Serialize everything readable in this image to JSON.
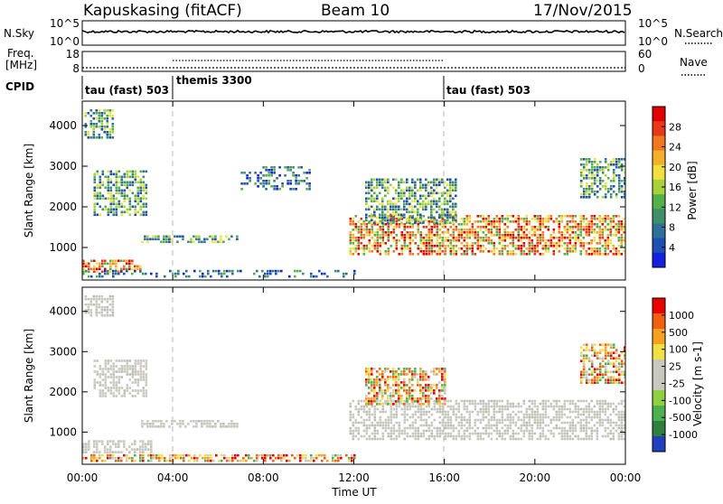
{
  "header": {
    "title": "Kapuskasing (fitACF)",
    "beam": "Beam 10",
    "date": "17/Nov/2015"
  },
  "sky_panel": {
    "label": "N.Sky",
    "right_label": "N.Search",
    "left_top": "10^5",
    "left_bottom": "10^0",
    "right_top": "10^5",
    "right_bottom": "10^0"
  },
  "freq_panel": {
    "label_line1": "Freq.",
    "label_line2": "[MHz]",
    "right_label": "Nave",
    "left_top": "18",
    "left_bottom": "8",
    "right_top": "60",
    "right_bottom": "0"
  },
  "cpid": {
    "label": "CPID",
    "segments": [
      {
        "name": "tau (fast) 503",
        "start_hour": 0,
        "end_hour": 4
      },
      {
        "name": "themis 3300",
        "start_hour": 4,
        "end_hour": 16
      },
      {
        "name": "tau (fast) 503",
        "start_hour": 16,
        "end_hour": 24
      }
    ]
  },
  "chart_data": [
    {
      "type": "heatmap",
      "name": "power",
      "ylabel": "Slant Range [km]",
      "xlabel": "Time UT",
      "xlim": [
        0,
        24
      ],
      "ylim": [
        200,
        4600
      ],
      "x_ticks": [
        "00:00",
        "04:00",
        "08:00",
        "12:00",
        "16:00",
        "20:00",
        "00:00"
      ],
      "y_ticks": [
        "1000",
        "2000",
        "3000",
        "4000"
      ],
      "colorbar": {
        "label": "Power [dB]",
        "ticks": [
          "4",
          "8",
          "12",
          "16",
          "20",
          "24",
          "28"
        ],
        "colors": [
          "#1420e0",
          "#1f4fb0",
          "#2f6f9a",
          "#3f8f6a",
          "#55b04a",
          "#a8d23a",
          "#f0e040",
          "#f5b02a",
          "#f07820",
          "#e83818",
          "#e00000"
        ]
      },
      "regions": [
        {
          "t": [
            0.1,
            1.3
          ],
          "r": [
            3700,
            4400
          ],
          "level": "medium"
        },
        {
          "t": [
            0.5,
            2.8
          ],
          "r": [
            1800,
            2900
          ],
          "level": "medium"
        },
        {
          "t": [
            0.0,
            2.6
          ],
          "r": [
            400,
            700
          ],
          "level": "high"
        },
        {
          "t": [
            2.6,
            6.8
          ],
          "r": [
            1100,
            1300
          ],
          "level": "medium"
        },
        {
          "t": [
            7.0,
            10.0
          ],
          "r": [
            2400,
            3000
          ],
          "level": "low"
        },
        {
          "t": [
            0.0,
            12.0
          ],
          "r": [
            250,
            450
          ],
          "level": "low"
        },
        {
          "t": [
            11.8,
            24.0
          ],
          "r": [
            800,
            1800
          ],
          "level": "high"
        },
        {
          "t": [
            12.5,
            16.5
          ],
          "r": [
            1600,
            2700
          ],
          "level": "medium"
        },
        {
          "t": [
            22.0,
            24.0
          ],
          "r": [
            2200,
            3200
          ],
          "level": "medium"
        }
      ]
    },
    {
      "type": "heatmap",
      "name": "velocity",
      "ylabel": "Slant Range [km]",
      "xlabel": "Time UT",
      "xlim": [
        0,
        24
      ],
      "ylim": [
        200,
        4600
      ],
      "x_ticks": [
        "00:00",
        "04:00",
        "08:00",
        "12:00",
        "16:00",
        "20:00",
        "00:00"
      ],
      "y_ticks": [
        "1000",
        "2000",
        "3000",
        "4000"
      ],
      "colorbar": {
        "label": "Velocity [m s-1]",
        "ticks": [
          "1000",
          "500",
          "100",
          "25",
          "-25",
          "-100",
          "-500",
          "-1000"
        ],
        "colors": [
          "#2040c0",
          "#2f7f3f",
          "#4fb050",
          "#90d040",
          "#c8c8c0",
          "#c8c8c0",
          "#f0e040",
          "#f5a020",
          "#f06010",
          "#e80000"
        ]
      },
      "regions": [
        {
          "t": [
            0.1,
            1.3
          ],
          "r": [
            3900,
            4400
          ],
          "level": "gray"
        },
        {
          "t": [
            0.5,
            2.8
          ],
          "r": [
            1900,
            2800
          ],
          "level": "gray"
        },
        {
          "t": [
            0.0,
            3.0
          ],
          "r": [
            500,
            800
          ],
          "level": "gray"
        },
        {
          "t": [
            2.6,
            6.8
          ],
          "r": [
            1150,
            1300
          ],
          "level": "gray"
        },
        {
          "t": [
            0.0,
            12.0
          ],
          "r": [
            250,
            450
          ],
          "level": "orange"
        },
        {
          "t": [
            11.8,
            24.0
          ],
          "r": [
            800,
            1800
          ],
          "level": "gray"
        },
        {
          "t": [
            12.5,
            16.0
          ],
          "r": [
            1700,
            2600
          ],
          "level": "orange"
        },
        {
          "t": [
            22.0,
            24.0
          ],
          "r": [
            2200,
            3200
          ],
          "level": "orange"
        }
      ]
    }
  ]
}
